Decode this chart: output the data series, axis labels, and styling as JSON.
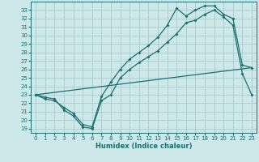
{
  "xlabel": "Humidex (Indice chaleur)",
  "bg_color": "#cde8e8",
  "grid_color": "#aacccc",
  "line_color": "#1a7070",
  "xlim": [
    -0.5,
    23.5
  ],
  "ylim": [
    18.5,
    34.0
  ],
  "xticks": [
    0,
    1,
    2,
    3,
    4,
    5,
    6,
    7,
    8,
    9,
    10,
    11,
    12,
    13,
    14,
    15,
    16,
    17,
    18,
    19,
    20,
    21,
    22,
    23
  ],
  "yticks": [
    19,
    20,
    21,
    22,
    23,
    24,
    25,
    26,
    27,
    28,
    29,
    30,
    31,
    32,
    33
  ],
  "line1_x": [
    0,
    1,
    2,
    3,
    4,
    5,
    6,
    7,
    8,
    9,
    10,
    11,
    12,
    13,
    14,
    15,
    16,
    17,
    18,
    19,
    20,
    21,
    22,
    23
  ],
  "line1_y": [
    23.0,
    22.7,
    22.5,
    21.2,
    20.5,
    19.2,
    19.0,
    22.3,
    23.0,
    25.0,
    26.0,
    26.8,
    27.5,
    28.2,
    29.2,
    30.2,
    31.5,
    31.8,
    32.5,
    33.0,
    32.2,
    31.2,
    25.5,
    23.0
  ],
  "line2_x": [
    0,
    1,
    2,
    3,
    4,
    5,
    6,
    7,
    8,
    9,
    10,
    11,
    12,
    13,
    14,
    15,
    16,
    17,
    18,
    19,
    20,
    21,
    22,
    23
  ],
  "line2_y": [
    23.0,
    22.5,
    22.3,
    21.5,
    20.8,
    19.5,
    19.2,
    22.8,
    24.5,
    26.0,
    27.2,
    28.0,
    28.8,
    29.8,
    31.2,
    33.2,
    32.3,
    33.0,
    33.5,
    33.5,
    32.5,
    32.0,
    26.5,
    26.2
  ],
  "line3_x": [
    0,
    23
  ],
  "line3_y": [
    23.0,
    26.2
  ]
}
